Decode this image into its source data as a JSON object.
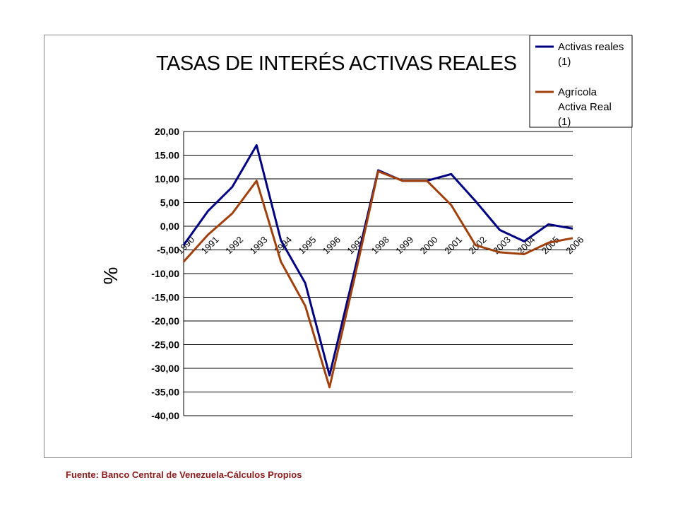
{
  "chart_data": {
    "type": "line",
    "title": "TASAS DE INTERÉS ACTIVAS REALES",
    "ylabel": "%",
    "xlabel": "",
    "ylim": [
      -40,
      20
    ],
    "yticks": [
      "20,00",
      "15.00",
      "10,00",
      "5,00",
      "0,00",
      "-5,00",
      "-10,00",
      "-15,00",
      "-20,00",
      "-25,00",
      "-30,00",
      "-35,00",
      "-40,00"
    ],
    "ytick_values": [
      20,
      15,
      10,
      5,
      0,
      -5,
      -10,
      -15,
      -20,
      -25,
      -30,
      -35,
      -40
    ],
    "categories": [
      "1990",
      "1991",
      "1992",
      "1993",
      "1994",
      "1995",
      "1996",
      "1997",
      "1998",
      "1999",
      "2000",
      "2001",
      "2002",
      "2003",
      "2004",
      "2005",
      "2006"
    ],
    "grid": true,
    "legend_position": "top-right",
    "series": [
      {
        "name": "Activas reales (1)",
        "name_lines": [
          "Activas reales",
          "(1)"
        ],
        "color": "#000080",
        "values": [
          -4.0,
          3.2,
          8.3,
          17.1,
          -3.0,
          -12.0,
          -31.5,
          -10.0,
          11.8,
          9.6,
          9.6,
          11.0,
          5.3,
          -0.8,
          -3.2,
          0.4,
          -0.5
        ]
      },
      {
        "name": "Agrícola Activa Real (1)",
        "name_lines": [
          "Agrícola",
          "Activa Real",
          "(1)"
        ],
        "color": "#a0410d",
        "values": [
          -7.5,
          -1.8,
          2.7,
          9.6,
          -7.5,
          -16.8,
          -34.0,
          -11.5,
          11.6,
          9.6,
          9.6,
          4.5,
          -4.0,
          -5.5,
          -5.9,
          -3.5,
          -2.5
        ]
      }
    ]
  },
  "source_note": "Fuente: Banco Central de Venezuela-Cálculos Propios"
}
